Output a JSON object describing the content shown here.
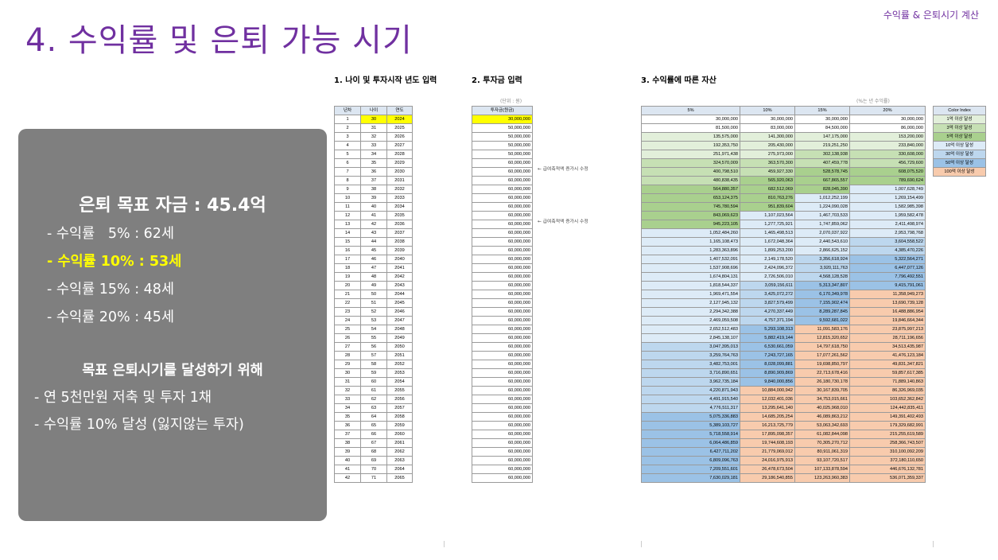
{
  "header": {
    "subtitle": "수익률 & 은퇴시기 계산"
  },
  "title": "4. 수익률 및 은퇴 가능 시기",
  "panel": {
    "goal": "은퇴 목표 자금 : 45.4억",
    "rates": [
      {
        "text": "- 수익률   5% : 62세",
        "highlight": false
      },
      {
        "text": "- 수익률 10% : 53세",
        "highlight": true
      },
      {
        "text": "- 수익률 15% : 48세",
        "highlight": false
      },
      {
        "text": "- 수익률 20% : 45세",
        "highlight": false
      }
    ],
    "plan_title": "목표 은퇴시기를 달성하기 위해",
    "plan_items": [
      "- 연 5천만원 저축 및 투자 1채",
      "- 수익률 10% 달성 (잃지않는 투자)"
    ]
  },
  "sections": {
    "s1": "1. 나이 및 투자시작 년도 입력",
    "s2": "2. 투자금 입력",
    "s3": "3. 수익률에 따른 자산",
    "unit2": "(단위 : 원)",
    "unit3": "(%는 년 수익률)"
  },
  "basic_headers": [
    "년차",
    "나이",
    "연도"
  ],
  "invest_header": "투자금(원금)",
  "asset_headers": [
    "5%",
    "10%",
    "15%",
    "20%"
  ],
  "notes": {
    "r6": "← 급여축적액 증가시 수정",
    "r11": "← 급여축적액 증가시 수정"
  },
  "legend": {
    "title": "Color Index",
    "items": [
      {
        "label": "1억 이상 달성",
        "color": "#e2efda"
      },
      {
        "label": "3억 이상 달성",
        "color": "#c6e0b4"
      },
      {
        "label": "5억 이상 달성",
        "color": "#a9d08e"
      },
      {
        "label": "10억 이상 달성",
        "color": "#ddebf7"
      },
      {
        "label": "30억 이상 달성",
        "color": "#bdd7ee"
      },
      {
        "label": "50억 이상 달성",
        "color": "#9bc2e6"
      },
      {
        "label": "100억 이상 달성",
        "color": "#f8cbad"
      }
    ]
  },
  "rows": [
    {
      "n": "1",
      "age": "30",
      "year": "2024",
      "inv": "30,000,000",
      "a": [
        "30,000,000",
        "30,000,000",
        "30,000,000",
        "30,000,000"
      ]
    },
    {
      "n": "2",
      "age": "31",
      "year": "2025",
      "inv": "50,000,000",
      "a": [
        "81,500,000",
        "83,000,000",
        "84,500,000",
        "86,000,000"
      ]
    },
    {
      "n": "3",
      "age": "32",
      "year": "2026",
      "inv": "50,000,000",
      "a": [
        "135,575,000",
        "141,300,000",
        "147,175,000",
        "153,200,000"
      ]
    },
    {
      "n": "4",
      "age": "33",
      "year": "2027",
      "inv": "50,000,000",
      "a": [
        "192,353,750",
        "205,430,000",
        "219,251,250",
        "233,840,000"
      ]
    },
    {
      "n": "5",
      "age": "34",
      "year": "2028",
      "inv": "50,000,000",
      "a": [
        "251,971,438",
        "275,973,000",
        "302,138,938",
        "330,608,000"
      ]
    },
    {
      "n": "6",
      "age": "35",
      "year": "2029",
      "inv": "60,000,000",
      "a": [
        "324,570,009",
        "363,570,300",
        "407,459,778",
        "456,729,600"
      ]
    },
    {
      "n": "7",
      "age": "36",
      "year": "2030",
      "inv": "60,000,000",
      "a": [
        "400,798,510",
        "459,927,330",
        "528,578,745",
        "608,075,520"
      ]
    },
    {
      "n": "8",
      "age": "37",
      "year": "2031",
      "inv": "60,000,000",
      "a": [
        "480,838,435",
        "565,920,063",
        "667,865,557",
        "789,690,624"
      ]
    },
    {
      "n": "9",
      "age": "38",
      "year": "2032",
      "inv": "60,000,000",
      "a": [
        "564,880,357",
        "682,512,069",
        "828,045,390",
        "1,007,628,749"
      ]
    },
    {
      "n": "10",
      "age": "39",
      "year": "2033",
      "inv": "60,000,000",
      "a": [
        "653,124,375",
        "810,763,276",
        "1,012,252,199",
        "1,269,154,499"
      ]
    },
    {
      "n": "11",
      "age": "40",
      "year": "2034",
      "inv": "60,000,000",
      "a": [
        "745,780,594",
        "951,839,604",
        "1,224,090,028",
        "1,582,985,398"
      ]
    },
    {
      "n": "12",
      "age": "41",
      "year": "2035",
      "inv": "60,000,000",
      "a": [
        "843,069,623",
        "1,107,023,564",
        "1,467,703,533",
        "1,959,582,478"
      ]
    },
    {
      "n": "13",
      "age": "42",
      "year": "2036",
      "inv": "60,000,000",
      "a": [
        "945,223,105",
        "1,277,725,921",
        "1,747,859,062",
        "2,411,498,974"
      ]
    },
    {
      "n": "14",
      "age": "43",
      "year": "2037",
      "inv": "60,000,000",
      "a": [
        "1,052,484,260",
        "1,465,498,513",
        "2,070,037,922",
        "2,953,798,768"
      ]
    },
    {
      "n": "15",
      "age": "44",
      "year": "2038",
      "inv": "60,000,000",
      "a": [
        "1,165,108,473",
        "1,672,048,364",
        "2,440,543,610",
        "3,604,558,522"
      ]
    },
    {
      "n": "16",
      "age": "45",
      "year": "2039",
      "inv": "60,000,000",
      "a": [
        "1,283,363,896",
        "1,899,253,200",
        "2,866,625,152",
        "4,385,470,226"
      ]
    },
    {
      "n": "17",
      "age": "46",
      "year": "2040",
      "inv": "60,000,000",
      "a": [
        "1,407,532,091",
        "2,149,178,520",
        "3,356,618,924",
        "5,322,564,271"
      ]
    },
    {
      "n": "18",
      "age": "47",
      "year": "2041",
      "inv": "60,000,000",
      "a": [
        "1,537,908,696",
        "2,424,096,372",
        "3,920,111,763",
        "6,447,077,126"
      ]
    },
    {
      "n": "19",
      "age": "48",
      "year": "2042",
      "inv": "60,000,000",
      "a": [
        "1,674,804,131",
        "2,726,506,010",
        "4,568,128,528",
        "7,796,492,551"
      ]
    },
    {
      "n": "20",
      "age": "49",
      "year": "2043",
      "inv": "60,000,000",
      "a": [
        "1,818,544,337",
        "3,059,156,611",
        "5,313,347,807",
        "9,415,791,061"
      ]
    },
    {
      "n": "21",
      "age": "50",
      "year": "2044",
      "inv": "60,000,000",
      "a": [
        "1,969,471,554",
        "3,425,072,272",
        "6,170,349,978",
        "11,358,949,273"
      ]
    },
    {
      "n": "22",
      "age": "51",
      "year": "2045",
      "inv": "60,000,000",
      "a": [
        "2,127,945,132",
        "3,827,579,499",
        "7,155,902,474",
        "13,690,739,128"
      ]
    },
    {
      "n": "23",
      "age": "52",
      "year": "2046",
      "inv": "60,000,000",
      "a": [
        "2,294,342,388",
        "4,270,337,449",
        "8,289,287,845",
        "16,488,886,954"
      ]
    },
    {
      "n": "24",
      "age": "53",
      "year": "2047",
      "inv": "60,000,000",
      "a": [
        "2,469,059,508",
        "4,757,371,194",
        "9,592,681,022",
        "19,846,664,344"
      ]
    },
    {
      "n": "25",
      "age": "54",
      "year": "2048",
      "inv": "60,000,000",
      "a": [
        "2,652,512,483",
        "5,293,108,313",
        "11,091,583,176",
        "23,875,997,213"
      ]
    },
    {
      "n": "26",
      "age": "55",
      "year": "2049",
      "inv": "60,000,000",
      "a": [
        "2,845,138,107",
        "5,882,419,144",
        "12,815,320,652",
        "28,711,196,656"
      ]
    },
    {
      "n": "27",
      "age": "56",
      "year": "2050",
      "inv": "60,000,000",
      "a": [
        "3,047,395,013",
        "6,530,661,059",
        "14,797,618,750",
        "34,513,435,987"
      ]
    },
    {
      "n": "28",
      "age": "57",
      "year": "2051",
      "inv": "60,000,000",
      "a": [
        "3,259,764,763",
        "7,243,727,165",
        "17,077,261,562",
        "41,476,123,184"
      ]
    },
    {
      "n": "29",
      "age": "58",
      "year": "2052",
      "inv": "60,000,000",
      "a": [
        "3,482,753,001",
        "8,028,099,881",
        "19,698,850,797",
        "49,831,347,821"
      ]
    },
    {
      "n": "30",
      "age": "59",
      "year": "2053",
      "inv": "60,000,000",
      "a": [
        "3,716,890,651",
        "8,890,909,869",
        "22,713,678,416",
        "59,857,617,385"
      ]
    },
    {
      "n": "31",
      "age": "60",
      "year": "2054",
      "inv": "60,000,000",
      "a": [
        "3,962,735,184",
        "9,840,000,856",
        "26,180,730,178",
        "71,889,140,863"
      ]
    },
    {
      "n": "32",
      "age": "61",
      "year": "2055",
      "inv": "60,000,000",
      "a": [
        "4,220,871,943",
        "10,884,000,942",
        "30,167,839,705",
        "86,326,969,035"
      ]
    },
    {
      "n": "33",
      "age": "62",
      "year": "2056",
      "inv": "60,000,000",
      "a": [
        "4,491,915,540",
        "12,032,401,036",
        "34,753,015,661",
        "103,652,362,842"
      ]
    },
    {
      "n": "34",
      "age": "63",
      "year": "2057",
      "inv": "60,000,000",
      "a": [
        "4,776,511,317",
        "13,295,641,140",
        "40,025,968,010",
        "124,442,835,411"
      ]
    },
    {
      "n": "35",
      "age": "64",
      "year": "2058",
      "inv": "60,000,000",
      "a": [
        "5,075,336,883",
        "14,685,205,254",
        "46,089,863,212",
        "149,391,402,493"
      ]
    },
    {
      "n": "36",
      "age": "65",
      "year": "2059",
      "inv": "60,000,000",
      "a": [
        "5,389,103,727",
        "16,213,725,779",
        "53,063,342,693",
        "179,329,682,991"
      ]
    },
    {
      "n": "37",
      "age": "66",
      "year": "2060",
      "inv": "60,000,000",
      "a": [
        "5,718,558,914",
        "17,895,098,357",
        "61,082,844,098",
        "215,255,619,589"
      ]
    },
    {
      "n": "38",
      "age": "67",
      "year": "2061",
      "inv": "60,000,000",
      "a": [
        "6,064,486,859",
        "19,744,608,193",
        "70,305,270,712",
        "258,366,743,507"
      ]
    },
    {
      "n": "39",
      "age": "68",
      "year": "2062",
      "inv": "60,000,000",
      "a": [
        "6,427,711,202",
        "21,779,069,012",
        "80,911,061,319",
        "310,100,092,209"
      ]
    },
    {
      "n": "40",
      "age": "69",
      "year": "2063",
      "inv": "60,000,000",
      "a": [
        "6,809,096,763",
        "24,016,975,913",
        "93,107,720,517",
        "372,180,110,650"
      ]
    },
    {
      "n": "41",
      "age": "70",
      "year": "2064",
      "inv": "60,000,000",
      "a": [
        "7,209,551,601",
        "26,478,673,504",
        "107,133,878,594",
        "446,676,132,781"
      ]
    },
    {
      "n": "42",
      "age": "71",
      "year": "2065",
      "inv": "60,000,000",
      "a": [
        "7,630,029,181",
        "29,186,540,855",
        "123,263,960,383",
        "536,071,359,337"
      ]
    }
  ]
}
